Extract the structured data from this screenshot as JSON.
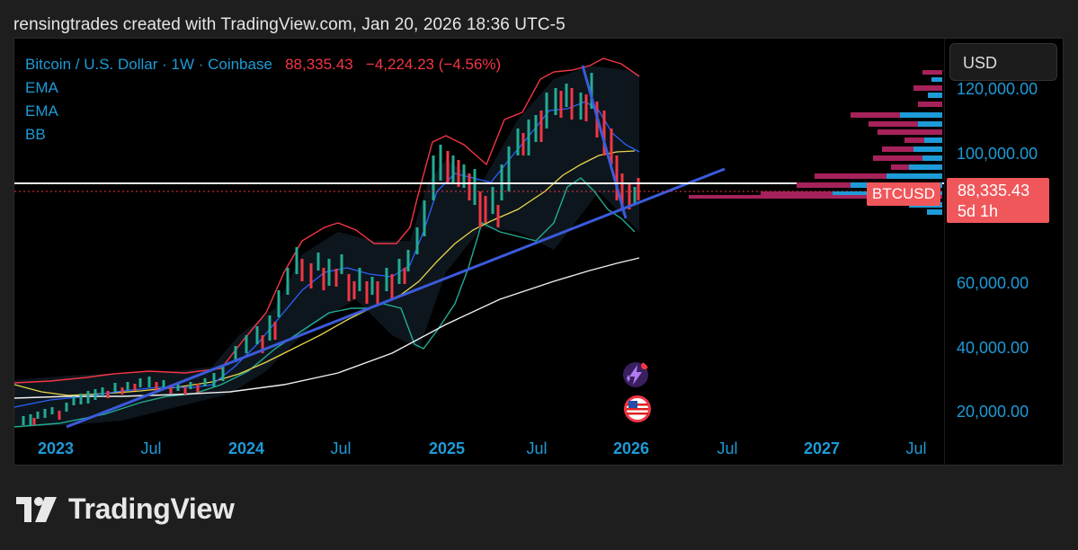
{
  "caption": "rensingtrades created with TradingView.com, Jan 20, 2026 18:36 UTC-5",
  "legend": {
    "symbol_line": "Bitcoin / U.S. Dollar · 1W · Coinbase",
    "last_price": "88,335.43",
    "change": "−4,224.23 (−4.56%)",
    "indicators": [
      "EMA",
      "EMA",
      "BB"
    ]
  },
  "currency_button": "USD",
  "price_axis_labels": [
    "120,000.00",
    "100,000.00",
    "60,000.00",
    "40,000.00",
    "20,000.00"
  ],
  "symbol_tag": "BTCUSD",
  "price_tag": {
    "price": "88,335.43",
    "countdown": "5d 1h"
  },
  "time_axis_labels": [
    {
      "text": "2023",
      "bold": true
    },
    {
      "text": "Jul",
      "bold": false
    },
    {
      "text": "2024",
      "bold": true
    },
    {
      "text": "Jul",
      "bold": false
    },
    {
      "text": "2025",
      "bold": true
    },
    {
      "text": "Jul",
      "bold": false
    },
    {
      "text": "2026",
      "bold": true
    },
    {
      "text": "Jul",
      "bold": false
    },
    {
      "text": "2027",
      "bold": true
    },
    {
      "text": "Jul",
      "bold": false
    }
  ],
  "footer_brand": "TradingView",
  "colors": {
    "axis_text": "#1e9bd7",
    "down": "#f23645",
    "up": "#22ab94",
    "trendline": "#3b5bdb",
    "ema_fast": "#2962ff",
    "ema_slow": "#e8d44d",
    "bb_upper": "#f23645",
    "bb_lower": "#22ab94",
    "volume_profile_up": "#1e9bd7",
    "volume_profile_down": "#a6225a"
  },
  "chart_data": {
    "type": "candlestick",
    "symbol": "Bitcoin / U.S. Dollar",
    "interval": "1W",
    "exchange": "Coinbase",
    "last": 88335.43,
    "change": -4224.23,
    "change_pct": -4.56,
    "weekly_closes": [
      {
        "t": "2023-01",
        "v": 17000
      },
      {
        "t": "2023-03",
        "v": 28000
      },
      {
        "t": "2023-05",
        "v": 27000
      },
      {
        "t": "2023-07",
        "v": 29500
      },
      {
        "t": "2023-09",
        "v": 26500
      },
      {
        "t": "2023-10",
        "v": 34000
      },
      {
        "t": "2023-12",
        "v": 42000
      },
      {
        "t": "2024-02",
        "v": 51000
      },
      {
        "t": "2024-03",
        "v": 69000
      },
      {
        "t": "2024-05",
        "v": 66000
      },
      {
        "t": "2024-07",
        "v": 58000
      },
      {
        "t": "2024-08",
        "v": 59000
      },
      {
        "t": "2024-10",
        "v": 67000
      },
      {
        "t": "2024-11",
        "v": 96000
      },
      {
        "t": "2024-12",
        "v": 94000
      },
      {
        "t": "2025-01",
        "v": 102000
      },
      {
        "t": "2025-02",
        "v": 86000
      },
      {
        "t": "2025-04",
        "v": 83000
      },
      {
        "t": "2025-05",
        "v": 104000
      },
      {
        "t": "2025-07",
        "v": 117000
      },
      {
        "t": "2025-08",
        "v": 113000
      },
      {
        "t": "2025-10",
        "v": 121000
      },
      {
        "t": "2025-11",
        "v": 91000
      },
      {
        "t": "2025-12",
        "v": 88000
      },
      {
        "t": "2026-01",
        "v": 88335
      }
    ]
  }
}
